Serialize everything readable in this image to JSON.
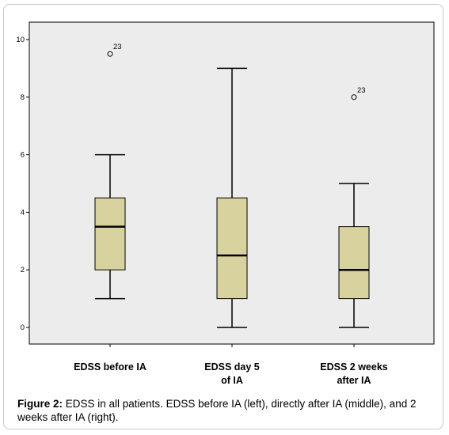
{
  "caption": {
    "label": "Figure 2:",
    "text": " EDSS in all patients. EDSS before IA (left), directly after IA (middle), and 2 weeks after IA (right)."
  },
  "colors": {
    "plot_background": "#ececec",
    "box_fill": "#d8d39e",
    "line": "#000000"
  },
  "chart_data": {
    "type": "boxplot",
    "title": "",
    "xlabel": "",
    "ylabel": "",
    "ylim": [
      0,
      10
    ],
    "yticks": [
      0,
      2,
      4,
      6,
      8,
      10
    ],
    "grid": false,
    "categories": [
      [
        "EDSS before IA"
      ],
      [
        "EDSS day 5",
        "of IA"
      ],
      [
        "EDSS 2 weeks",
        "after IA"
      ]
    ],
    "boxes": [
      {
        "whisker_low": 1,
        "q1": 2,
        "median": 3.5,
        "q3": 4.5,
        "whisker_high": 6,
        "outliers": [
          {
            "value": 9.5,
            "label": "23"
          }
        ]
      },
      {
        "whisker_low": 0,
        "q1": 1,
        "median": 2.5,
        "q3": 4.5,
        "whisker_high": 9,
        "outliers": []
      },
      {
        "whisker_low": 0,
        "q1": 1,
        "median": 2,
        "q3": 3.5,
        "whisker_high": 5,
        "outliers": [
          {
            "value": 8,
            "label": "23"
          }
        ]
      }
    ]
  }
}
